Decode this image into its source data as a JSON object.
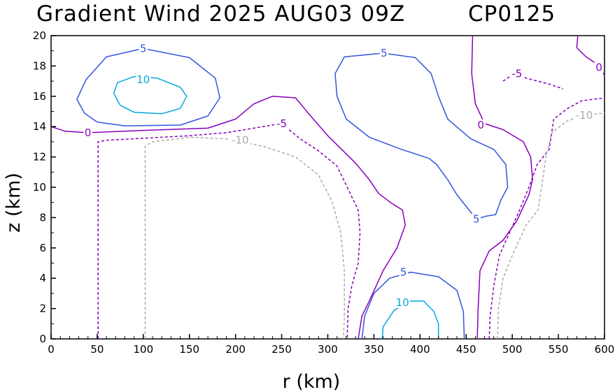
{
  "chart_data": {
    "type": "contour",
    "title": "Gradient Wind 2025 AUG03 09Z",
    "storm_id": "CP0125",
    "xlabel": "r (km)",
    "ylabel": "z (km)",
    "xlim": [
      0,
      600
    ],
    "ylim": [
      0,
      20
    ],
    "xticks": [
      "0",
      "50",
      "100",
      "150",
      "200",
      "250",
      "300",
      "350",
      "400",
      "450",
      "500",
      "550",
      "600"
    ],
    "yticks": [
      "0",
      "2",
      "4",
      "6",
      "8",
      "10",
      "12",
      "14",
      "16",
      "18",
      "20"
    ],
    "colors": {
      "c10": "#00aadd",
      "c5": "#3355dd",
      "c0": "#8800bb",
      "cm5": "#8800bb",
      "cm10": "#aaaaaa"
    },
    "contours": [
      {
        "level": 10,
        "label": "10",
        "color": "c10",
        "dash": false,
        "points": [
          [
            75,
            15.4
          ],
          [
            90,
            14.95
          ],
          [
            120,
            14.85
          ],
          [
            140,
            15.2
          ],
          [
            147,
            16
          ],
          [
            140,
            16.6
          ],
          [
            115,
            17.2
          ],
          [
            90,
            17.3
          ],
          [
            72,
            16.9
          ],
          [
            68,
            16.2
          ],
          [
            75,
            15.4
          ]
        ]
      },
      {
        "level": 10,
        "label": "10",
        "color": "c10",
        "dash": false,
        "points": [
          [
            359,
            0
          ],
          [
            360,
            0.8
          ],
          [
            372,
            1.9
          ],
          [
            390,
            2.5
          ],
          [
            404,
            2.5
          ],
          [
            415,
            1.8
          ],
          [
            420,
            1
          ],
          [
            420,
            0
          ]
        ]
      },
      {
        "level": 5,
        "label": "5",
        "color": "c5",
        "dash": false,
        "points": [
          [
            50,
            14.3
          ],
          [
            80,
            14.05
          ],
          [
            140,
            14.1
          ],
          [
            170,
            14.7
          ],
          [
            183,
            15.9
          ],
          [
            178,
            17.2
          ],
          [
            150,
            18.55
          ],
          [
            100,
            19.15
          ],
          [
            60,
            18.6
          ],
          [
            38,
            17.1
          ],
          [
            28,
            15.8
          ],
          [
            36,
            14.9
          ],
          [
            50,
            14.3
          ]
        ]
      },
      {
        "level": 5,
        "label": "5",
        "color": "c5",
        "dash": false,
        "points": [
          [
            337,
            0
          ],
          [
            340,
            1.5
          ],
          [
            350,
            3.0
          ],
          [
            367,
            4.0
          ],
          [
            390,
            4.4
          ],
          [
            420,
            4.1
          ],
          [
            440,
            3.2
          ],
          [
            447,
            1.8
          ],
          [
            448,
            0
          ]
        ]
      },
      {
        "level": 5,
        "label": "5",
        "color": "c5",
        "dash": false,
        "points": [
          [
            461,
            7.9
          ],
          [
            472,
            8.1
          ],
          [
            482,
            8.2
          ],
          [
            488,
            9.2
          ],
          [
            495,
            10
          ],
          [
            493,
            11.5
          ],
          [
            480,
            12.5
          ],
          [
            455,
            13.2
          ],
          [
            430,
            14.5
          ],
          [
            420,
            16
          ],
          [
            412,
            17.5
          ],
          [
            395,
            18.55
          ],
          [
            360,
            18.85
          ],
          [
            318,
            18.6
          ],
          [
            308,
            17.5
          ],
          [
            310,
            16
          ],
          [
            320,
            14.5
          ],
          [
            345,
            13.3
          ],
          [
            380,
            12.5
          ],
          [
            410,
            11.9
          ],
          [
            418,
            11.5
          ],
          [
            430,
            10.5
          ],
          [
            440,
            9.5
          ],
          [
            461,
            7.9
          ]
        ]
      },
      {
        "level": 0,
        "label": "0",
        "color": "c0",
        "dash": false,
        "points": [
          [
            0,
            14.0
          ],
          [
            15,
            13.7
          ],
          [
            40,
            13.6
          ],
          [
            100,
            13.75
          ],
          [
            170,
            13.9
          ],
          [
            200,
            14.5
          ],
          [
            220,
            15.5
          ],
          [
            240,
            16.0
          ],
          [
            265,
            15.9
          ],
          [
            280,
            14.8
          ],
          [
            300,
            13.4
          ],
          [
            330,
            11.6
          ],
          [
            345,
            10.5
          ],
          [
            355,
            9.6
          ],
          [
            368,
            9.0
          ],
          [
            381,
            8.5
          ],
          [
            384,
            7.5
          ],
          [
            375,
            6.0
          ],
          [
            360,
            4.5
          ],
          [
            345,
            2.5
          ],
          [
            337,
            1.5
          ],
          [
            333,
            0
          ]
        ]
      },
      {
        "level": 0,
        "label": "0",
        "color": "c0",
        "dash": false,
        "points": [
          [
            462,
            0
          ],
          [
            463,
            2
          ],
          [
            465,
            4.5
          ],
          [
            475,
            5.8
          ],
          [
            490,
            6.5
          ],
          [
            505,
            7.8
          ],
          [
            518,
            9.5
          ],
          [
            522,
            10.5
          ],
          [
            520,
            12.0
          ],
          [
            512,
            13.0
          ],
          [
            490,
            13.8
          ],
          [
            470,
            14.2
          ],
          [
            460,
            15.5
          ],
          [
            456,
            17.5
          ],
          [
            457,
            20
          ]
        ]
      },
      {
        "level": 0,
        "label": "0",
        "color": "c0",
        "dash": false,
        "points": [
          [
            571,
            20
          ],
          [
            570,
            19.2
          ],
          [
            580,
            18.6
          ],
          [
            590,
            18.2
          ],
          [
            600,
            17.4
          ]
        ]
      },
      {
        "level": -5,
        "label": "-5",
        "color": "cm5",
        "dash": true,
        "points": [
          [
            51,
            0
          ],
          [
            51,
            13
          ],
          [
            60,
            13.1
          ],
          [
            90,
            13.2
          ],
          [
            150,
            13.4
          ],
          [
            190,
            13.6
          ],
          [
            230,
            14.0
          ],
          [
            250,
            14.2
          ],
          [
            270,
            13.2
          ],
          [
            290,
            12.4
          ],
          [
            310,
            11.4
          ],
          [
            325,
            9.5
          ],
          [
            333,
            8.5
          ],
          [
            335,
            7.0
          ],
          [
            333,
            5
          ],
          [
            326,
            3.5
          ],
          [
            322,
            2
          ],
          [
            321,
            0
          ]
        ]
      },
      {
        "level": -5,
        "label": "-5",
        "color": "cm5",
        "dash": true,
        "points": [
          [
            475,
            0
          ],
          [
            476,
            1.5
          ],
          [
            480,
            3.5
          ],
          [
            486,
            5.5
          ],
          [
            497,
            7.0
          ],
          [
            508,
            8.5
          ],
          [
            518,
            10
          ],
          [
            527,
            11.5
          ],
          [
            540,
            12.5
          ],
          [
            545,
            14.5
          ],
          [
            560,
            15.2
          ],
          [
            575,
            15.7
          ],
          [
            600,
            15.9
          ]
        ]
      },
      {
        "level": -5,
        "label": "-5",
        "color": "cm5",
        "dash": true,
        "points": [
          [
            490,
            17.0
          ],
          [
            500,
            17.4
          ],
          [
            505,
            17.5
          ],
          [
            515,
            17.2
          ],
          [
            540,
            16.8
          ],
          [
            555,
            16.5
          ]
        ]
      },
      {
        "level": -10,
        "label": "-10",
        "color": "cm10",
        "dash": true,
        "points": [
          [
            102,
            0
          ],
          [
            102,
            12.7
          ],
          [
            110,
            13.0
          ],
          [
            150,
            13.3
          ],
          [
            190,
            13.2
          ],
          [
            230,
            12.7
          ],
          [
            265,
            12.0
          ],
          [
            290,
            10.8
          ],
          [
            305,
            9.0
          ],
          [
            314,
            7.0
          ],
          [
            318,
            4.5
          ],
          [
            318,
            1.5
          ],
          [
            317,
            0
          ]
        ]
      },
      {
        "level": -10,
        "label": "-10",
        "color": "cm10",
        "dash": true,
        "points": [
          [
            484,
            0
          ],
          [
            485,
            2
          ],
          [
            490,
            4.0
          ],
          [
            500,
            5.5
          ],
          [
            515,
            7.5
          ],
          [
            528,
            8.5
          ],
          [
            533,
            10.5
          ],
          [
            537,
            12.2
          ],
          [
            543,
            13.6
          ],
          [
            560,
            14.4
          ],
          [
            575,
            14.7
          ],
          [
            600,
            14.9
          ]
        ]
      }
    ],
    "labels": [
      {
        "text": "10",
        "color": "c10",
        "x": 100,
        "y": 17.1
      },
      {
        "text": "10",
        "color": "c10",
        "x": 381,
        "y": 2.4
      },
      {
        "text": "5",
        "color": "c5",
        "x": 100,
        "y": 19.15
      },
      {
        "text": "5",
        "color": "c5",
        "x": 382,
        "y": 4.4
      },
      {
        "text": "5",
        "color": "c5",
        "x": 361,
        "y": 18.85
      },
      {
        "text": "5",
        "color": "c5",
        "x": 461,
        "y": 7.9
      },
      {
        "text": "0",
        "color": "c0",
        "x": 40,
        "y": 13.6
      },
      {
        "text": "0",
        "color": "c0",
        "x": 466,
        "y": 14.1
      },
      {
        "text": "0",
        "color": "c0",
        "x": 594,
        "y": 17.9
      },
      {
        "text": "-5",
        "color": "cm5",
        "x": 250,
        "y": 14.2
      },
      {
        "text": "-5",
        "color": "cm5",
        "x": 505,
        "y": 17.5
      },
      {
        "text": "-10",
        "color": "cm10",
        "x": 205,
        "y": 13.1
      },
      {
        "text": "-10",
        "color": "cm10",
        "x": 578,
        "y": 14.75
      }
    ]
  }
}
